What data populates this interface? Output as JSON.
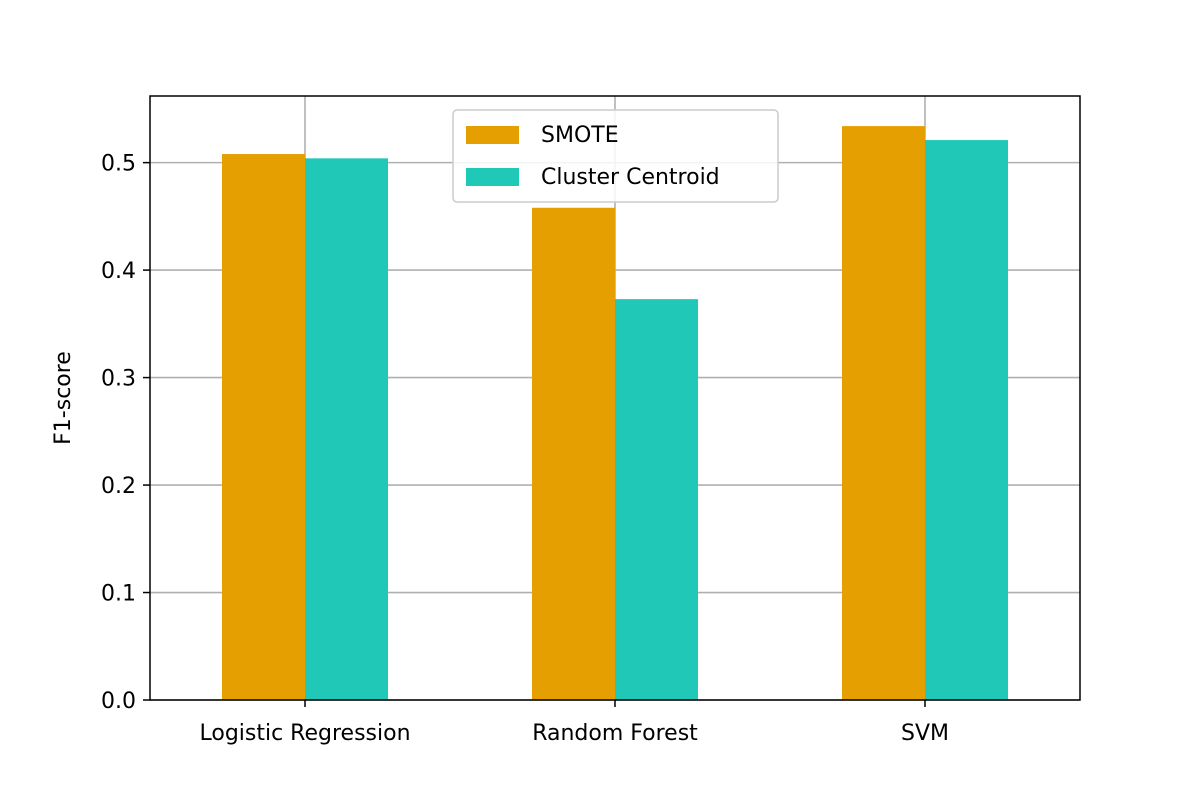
{
  "chart_data": {
    "type": "bar",
    "title": "",
    "xlabel": "",
    "ylabel": "F1-score",
    "categories": [
      "Logistic Regression",
      "Random Forest",
      "SVM"
    ],
    "series": [
      {
        "name": "SMOTE",
        "color": "#E69F00",
        "values": [
          0.508,
          0.458,
          0.534
        ]
      },
      {
        "name": "Cluster Centroid",
        "color": "#20C9B7",
        "values": [
          0.504,
          0.373,
          0.521
        ]
      }
    ],
    "ylim": [
      0.0,
      0.562
    ],
    "yticks": [
      "0.0",
      "0.1",
      "0.2",
      "0.3",
      "0.4",
      "0.5"
    ],
    "grid": true,
    "legend_position": "top-center"
  }
}
